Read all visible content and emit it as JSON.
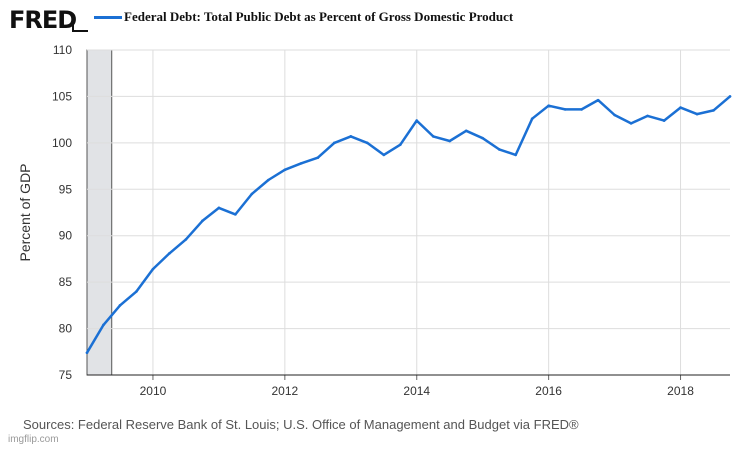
{
  "brand": {
    "logo_text": "FRED",
    "watermark": "imgflip.com"
  },
  "source_text": "Sources: Federal Reserve Bank of St. Louis; U.S. Office of Management and Budget via FRED®",
  "chart_data": {
    "type": "line",
    "title": "Federal Debt: Total Public Debt as Percent of Gross Domestic Product",
    "xlabel": "",
    "ylabel": "Percent of GDP",
    "xlim": [
      2009.0,
      2018.75
    ],
    "ylim": [
      75,
      110
    ],
    "grid": true,
    "recession_shading": [
      2009.0,
      2009.375
    ],
    "x_ticks": [
      2010,
      2012,
      2014,
      2016,
      2018
    ],
    "y_ticks": [
      75,
      80,
      85,
      90,
      95,
      100,
      105,
      110
    ],
    "colors": {
      "line": "#1b70d4",
      "recession": "#e1e3e6",
      "grid": "#dddddd",
      "axis": "#222222"
    },
    "series": [
      {
        "name": "Federal Debt: Total Public Debt as Percent of Gross Domestic Product",
        "x": [
          2009.0,
          2009.25,
          2009.5,
          2009.75,
          2010.0,
          2010.25,
          2010.5,
          2010.75,
          2011.0,
          2011.25,
          2011.5,
          2011.75,
          2012.0,
          2012.25,
          2012.5,
          2012.75,
          2013.0,
          2013.25,
          2013.5,
          2013.75,
          2014.0,
          2014.25,
          2014.5,
          2014.75,
          2015.0,
          2015.25,
          2015.5,
          2015.75,
          2016.0,
          2016.25,
          2016.5,
          2016.75,
          2017.0,
          2017.25,
          2017.5,
          2017.75,
          2018.0,
          2018.25,
          2018.5,
          2018.75
        ],
        "values": [
          77.4,
          80.4,
          82.5,
          84.0,
          86.4,
          88.1,
          89.6,
          91.6,
          93.0,
          92.3,
          94.5,
          96.0,
          97.1,
          97.8,
          98.4,
          100.0,
          100.7,
          100.0,
          98.7,
          99.8,
          102.4,
          100.7,
          100.2,
          101.3,
          100.5,
          99.3,
          98.7,
          102.6,
          104.0,
          103.6,
          103.6,
          104.6,
          103.0,
          102.1,
          102.9,
          102.4,
          103.8,
          103.1,
          103.5,
          105.0
        ]
      }
    ]
  }
}
